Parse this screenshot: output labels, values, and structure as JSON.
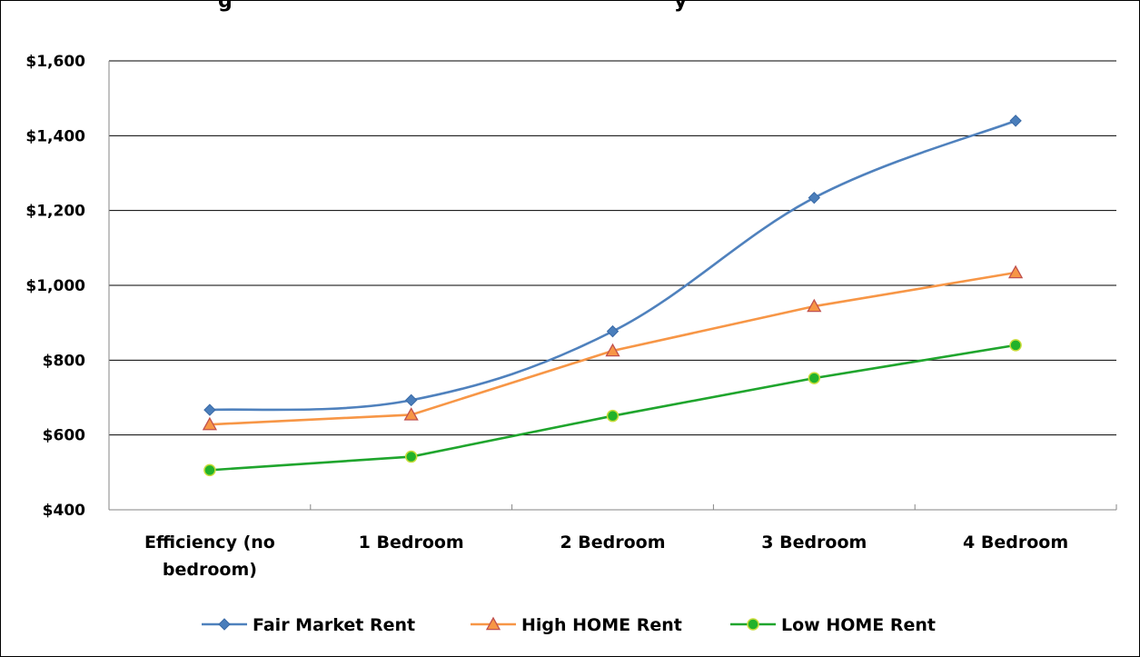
{
  "chart_data": {
    "type": "line",
    "title": "g",
    "title_trailing": "y",
    "categories": [
      "Efficiency (no bedroom)",
      "1 Bedroom",
      "2 Bedroom",
      "3 Bedroom",
      "4 Bedroom"
    ],
    "category_lines": [
      [
        "Efficiency (no",
        "bedroom)"
      ],
      [
        "1 Bedroom"
      ],
      [
        "2 Bedroom"
      ],
      [
        "3 Bedroom"
      ],
      [
        "4 Bedroom"
      ]
    ],
    "series": [
      {
        "name": "Fair Market Rent",
        "values": [
          667,
          693,
          877,
          1234,
          1440
        ],
        "color": "#4F81BD",
        "marker": "diamond",
        "smooth": true
      },
      {
        "name": "High HOME Rent",
        "values": [
          628,
          654,
          825,
          944,
          1034
        ],
        "color": "#F79646",
        "marker": "triangle",
        "smooth": false
      },
      {
        "name": "Low HOME Rent",
        "values": [
          506,
          542,
          651,
          752,
          840
        ],
        "color": "#1FA52D",
        "marker": "circle",
        "smooth": false
      }
    ],
    "ylim": [
      400,
      1600
    ],
    "ytick_values": [
      400,
      600,
      800,
      1000,
      1200,
      1400,
      1600
    ],
    "ytick_labels": [
      "$400",
      "$600",
      "$800",
      "$1,000",
      "$1,200",
      "$1,400",
      "$1,600"
    ],
    "grid": true,
    "legend_position": "bottom",
    "xlabel": "",
    "ylabel": ""
  }
}
